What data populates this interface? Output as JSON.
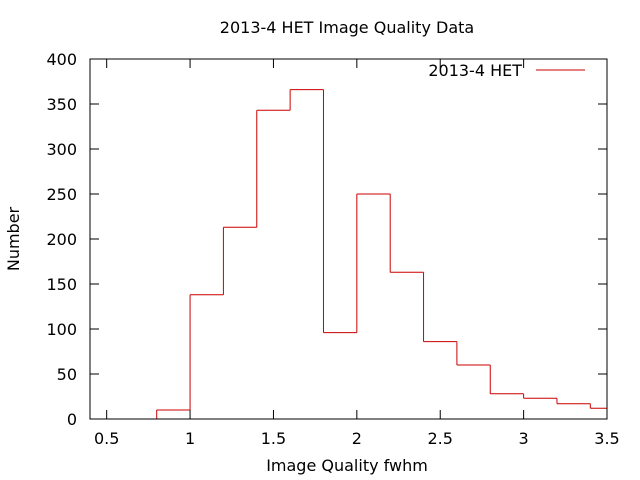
{
  "chart_data": {
    "type": "bar",
    "style": "step-histogram",
    "title": "2013-4 HET Image Quality Data",
    "xlabel": "Image Quality fwhm",
    "ylabel": "Number",
    "xlim": [
      0.4,
      3.5
    ],
    "ylim": [
      0,
      400
    ],
    "xticks": [
      0.5,
      1,
      1.5,
      2,
      2.5,
      3,
      3.5
    ],
    "xtick_labels": [
      "0.5",
      "1",
      "1.5",
      "2",
      "2.5",
      "3",
      "3.5"
    ],
    "yticks": [
      0,
      50,
      100,
      150,
      200,
      250,
      300,
      350,
      400
    ],
    "ytick_labels": [
      "0",
      "50",
      "100",
      "150",
      "200",
      "250",
      "300",
      "350",
      "400"
    ],
    "grid": false,
    "legend": "top-right",
    "series": [
      {
        "name": "2013-4 HET",
        "color": "#cc0000",
        "bin_edges": [
          0.8,
          1.0,
          1.2,
          1.4,
          1.6,
          1.8,
          2.0,
          2.2,
          2.4,
          2.6,
          2.8,
          3.0,
          3.2,
          3.4,
          3.5
        ],
        "values": [
          10,
          138,
          213,
          343,
          366,
          96,
          250,
          163,
          86,
          60,
          28,
          23,
          17,
          12
        ]
      }
    ]
  }
}
